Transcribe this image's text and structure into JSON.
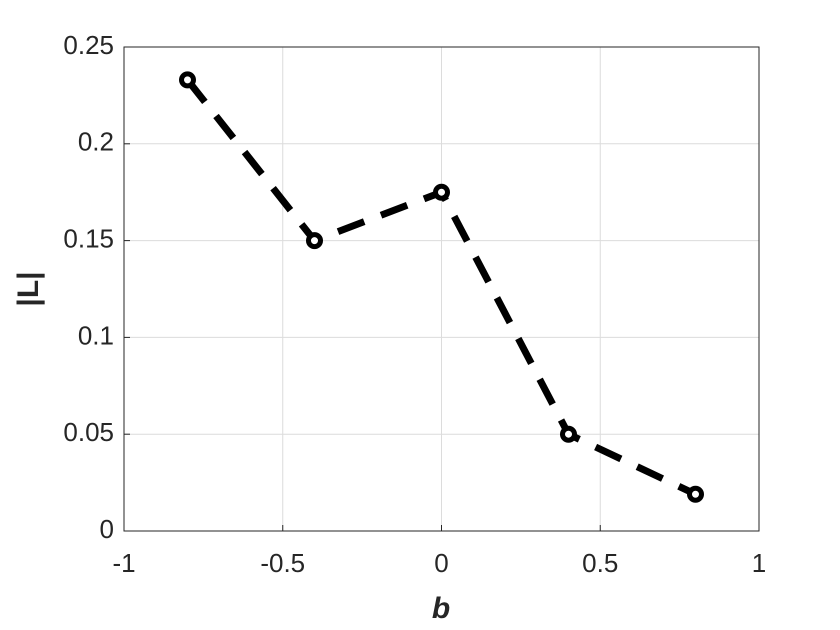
{
  "chart_data": {
    "type": "line",
    "x_label": "b",
    "y_label": "|L|",
    "x": [
      -0.8,
      -0.4,
      0,
      0.4,
      0.8
    ],
    "values": [
      0.233,
      0.15,
      0.175,
      0.05,
      0.019
    ],
    "color": "#000000",
    "line_style": "dashed",
    "xlim": [
      -1,
      1
    ],
    "xticks": [
      -1,
      -0.5,
      0,
      0.5,
      1
    ],
    "ylim": [
      0,
      0.25
    ],
    "yticks": [
      0,
      0.05,
      0.1,
      0.15,
      0.2,
      0.25
    ],
    "grid": true
  }
}
